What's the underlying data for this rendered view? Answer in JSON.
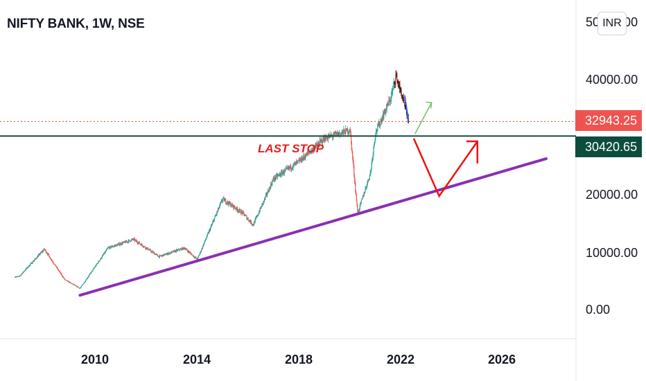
{
  "header": {
    "title": "NIFTY BANK, 1W, NSE",
    "currency_button": "INR"
  },
  "price_scale": {
    "ticks": [
      "50000.00",
      "40000.00",
      "20000.00",
      "10000.00",
      "0.00"
    ],
    "last_price": "32943.25",
    "level_price": "30420.65"
  },
  "time_scale": {
    "ticks": [
      "2010",
      "2014",
      "2018",
      "2022",
      "2026"
    ]
  },
  "annotation": {
    "text": "LAST STOP"
  },
  "colors": {
    "up": "#26a69a",
    "down": "#ef5350",
    "trendline": "#8a2fb2",
    "level_line": "#0d4d3d",
    "last_price_dotted": "#e53935",
    "arrow": "#f20f0f",
    "projection_up": "#6ebd62",
    "recent_bars": "#000000",
    "recent_drop": "#2962ff"
  },
  "chart_data": {
    "type": "candlestick",
    "title": "NIFTY BANK, 1W, NSE",
    "xlim": [
      2006.8,
      2027.7
    ],
    "ylim": [
      -1500,
      54000
    ],
    "approx_close_path": [
      {
        "x": 2007.0,
        "y": 6000
      },
      {
        "x": 2008.0,
        "y": 10800
      },
      {
        "x": 2008.8,
        "y": 5500
      },
      {
        "x": 2009.4,
        "y": 4000
      },
      {
        "x": 2010.5,
        "y": 11000
      },
      {
        "x": 2011.5,
        "y": 12500
      },
      {
        "x": 2012.5,
        "y": 9500
      },
      {
        "x": 2013.5,
        "y": 11000
      },
      {
        "x": 2014.0,
        "y": 9000
      },
      {
        "x": 2015.0,
        "y": 19500
      },
      {
        "x": 2015.8,
        "y": 17000
      },
      {
        "x": 2016.2,
        "y": 15000
      },
      {
        "x": 2017.0,
        "y": 23000
      },
      {
        "x": 2018.0,
        "y": 26000
      },
      {
        "x": 2019.0,
        "y": 30000
      },
      {
        "x": 2020.0,
        "y": 31500
      },
      {
        "x": 2020.3,
        "y": 17000
      },
      {
        "x": 2020.8,
        "y": 24000
      },
      {
        "x": 2021.0,
        "y": 31000
      },
      {
        "x": 2021.6,
        "y": 37000
      },
      {
        "x": 2021.8,
        "y": 41000
      },
      {
        "x": 2022.0,
        "y": 38000
      },
      {
        "x": 2022.3,
        "y": 32943.25
      }
    ],
    "trendline": [
      {
        "x": 2009.4,
        "y": 2800
      },
      {
        "x": 2027.7,
        "y": 26500
      }
    ],
    "horizontal_level": 30420.65,
    "last_price": 32943.25,
    "projection_path": [
      {
        "x": 2022.5,
        "y": 30000
      },
      {
        "x": 2023.5,
        "y": 20000
      },
      {
        "x": 2025.0,
        "y": 29500
      }
    ],
    "annotation": {
      "text": "LAST STOP",
      "x": 2018.0,
      "y": 26000
    }
  }
}
